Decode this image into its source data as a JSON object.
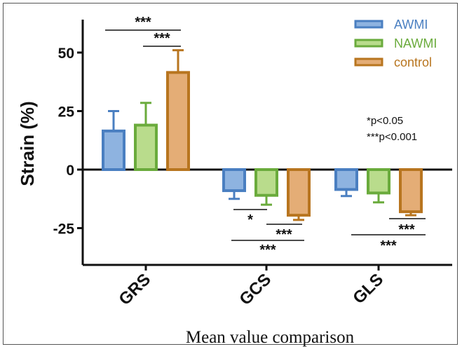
{
  "chart_data": {
    "type": "bar",
    "title": "",
    "xlabel": "Mean value comparison",
    "ylabel": "Strain (%)",
    "ylim": [
      -40,
      65
    ],
    "yticks": [
      "50",
      "25",
      "0",
      "-25"
    ],
    "ytick_values": [
      50,
      25,
      0,
      -25
    ],
    "categories": [
      "GRS",
      "GCS",
      "GLS"
    ],
    "series": [
      {
        "name": "AWMI",
        "color": "#4a7fc1",
        "fill": "#8eb3e0",
        "values": [
          16.5,
          -9.0,
          -8.5
        ],
        "errors": [
          8.5,
          3.5,
          2.8
        ]
      },
      {
        "name": "NAWMI",
        "color": "#6aab3c",
        "fill": "#b9dc8c",
        "values": [
          19.0,
          -11.0,
          -10.0
        ],
        "errors": [
          9.5,
          4.0,
          4.0
        ]
      },
      {
        "name": "control",
        "color": "#b8751f",
        "fill": "#e4ad76",
        "values": [
          41.5,
          -19.5,
          -18.0
        ],
        "errors": [
          9.5,
          2.0,
          1.5
        ]
      }
    ],
    "significance": [
      {
        "category": "GRS",
        "pair": [
          "AWMI",
          "control"
        ],
        "label": "***"
      },
      {
        "category": "GRS",
        "pair": [
          "NAWMI",
          "control"
        ],
        "label": "***"
      },
      {
        "category": "GCS",
        "pair": [
          "AWMI",
          "NAWMI"
        ],
        "label": "*"
      },
      {
        "category": "GCS",
        "pair": [
          "NAWMI",
          "control"
        ],
        "label": "***"
      },
      {
        "category": "GCS",
        "pair": [
          "AWMI",
          "control"
        ],
        "label": "***"
      },
      {
        "category": "GLS",
        "pair": [
          "NAWMI",
          "control"
        ],
        "label": "***"
      },
      {
        "category": "GLS",
        "pair": [
          "AWMI",
          "control"
        ],
        "label": "***"
      }
    ],
    "notes": [
      "*p<0.05",
      "***p<0.001"
    ],
    "legend_position": "top-right",
    "grid": false
  }
}
